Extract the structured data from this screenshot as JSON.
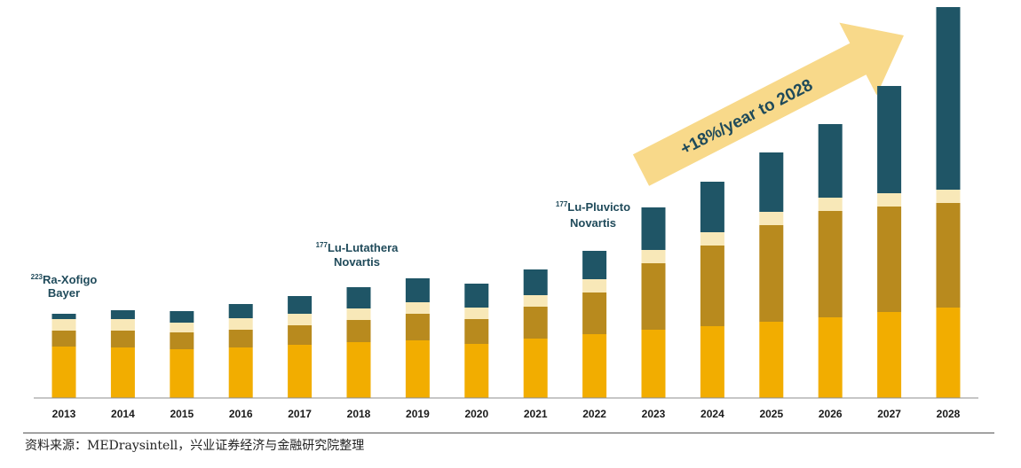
{
  "chart_data": {
    "type": "bar",
    "stacked": true,
    "categories": [
      "2013",
      "2014",
      "2015",
      "2016",
      "2017",
      "2018",
      "2019",
      "2020",
      "2021",
      "2022",
      "2023",
      "2024",
      "2025",
      "2026",
      "2027",
      "2028"
    ],
    "series": [
      {
        "color": "#f2ad00",
        "values": [
          58,
          57,
          55,
          57,
          60,
          63,
          65,
          61,
          67,
          72,
          77,
          81,
          86,
          91,
          97,
          102
        ]
      },
      {
        "color": "#b88a1e",
        "values": [
          18,
          19,
          19,
          20,
          22,
          25,
          30,
          28,
          36,
          47,
          75,
          91,
          109,
          120,
          119,
          118
        ]
      },
      {
        "color": "#f8e8b8",
        "values": [
          13,
          13,
          11,
          13,
          13,
          13,
          13,
          13,
          13,
          15,
          15,
          15,
          15,
          15,
          15,
          15
        ]
      },
      {
        "color": "#1f5566",
        "values": [
          6,
          10,
          13,
          16,
          20,
          24,
          27,
          27,
          29,
          32,
          48,
          57,
          67,
          83,
          121,
          206
        ]
      }
    ],
    "ylim": [
      0,
      440
    ],
    "annotations": [
      {
        "sup": "223",
        "line1": "Ra-Xofigo",
        "line2": "Bayer",
        "category": "2013"
      },
      {
        "sup": "177",
        "line1": "Lu-Lutathera",
        "line2": "Novartis",
        "category": "2018"
      },
      {
        "sup": "177",
        "line1": "Lu-Pluvicto",
        "line2": "Novartis",
        "category": "2022"
      }
    ],
    "growth_arrow": {
      "label": "+18%/year to 2028",
      "color": "#f8d98a"
    },
    "grid": false
  },
  "source": "资料来源：MEDraysintell，兴业证券经济与金融研究院整理"
}
